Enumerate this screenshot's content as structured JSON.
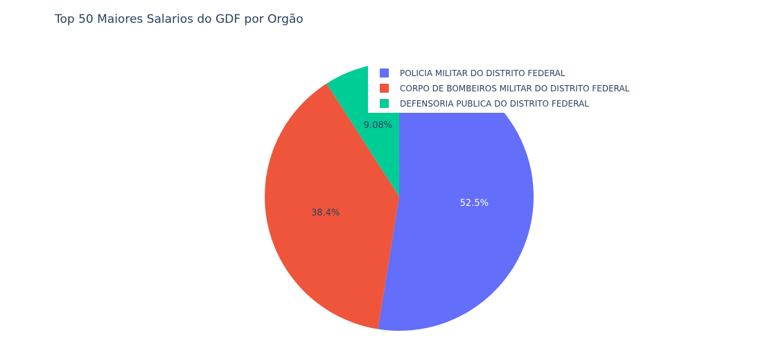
{
  "chart_data": {
    "type": "pie",
    "title": "Top 50 Maiores Salarios do GDF por Orgão",
    "slices": [
      {
        "label": "POLICIA MILITAR DO DISTRITO FEDERAL",
        "value": 52.5,
        "text": "52.5%",
        "color": "#636efa",
        "text_color": "#ffffff"
      },
      {
        "label": "CORPO DE BOMBEIROS MILITAR DO DISTRITO FEDERAL",
        "value": 38.4,
        "text": "38.4%",
        "color": "#ef553b",
        "text_color": "#2a3f5f"
      },
      {
        "label": "DEFENSORIA PUBLICA DO DISTRITO FEDERAL",
        "value": 9.08,
        "text": "9.08%",
        "color": "#00cc96",
        "text_color": "#2a3f5f"
      }
    ],
    "direction": "counterclockwise",
    "legend_position": "top-right"
  }
}
